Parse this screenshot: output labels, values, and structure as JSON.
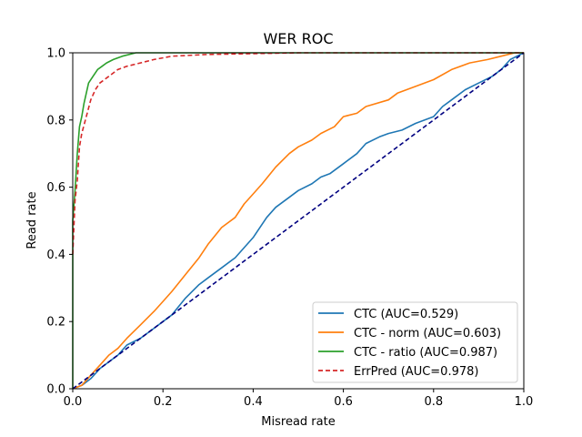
{
  "chart_data": {
    "type": "line",
    "title": "WER ROC",
    "xlabel": "Misread rate",
    "ylabel": "Read rate",
    "xlim": [
      0.0,
      1.0
    ],
    "ylim": [
      0.0,
      1.0
    ],
    "xticks": [
      "0.0",
      "0.2",
      "0.4",
      "0.6",
      "0.8",
      "1.0"
    ],
    "yticks": [
      "0.0",
      "0.2",
      "0.4",
      "0.6",
      "0.8",
      "1.0"
    ],
    "grid": false,
    "legend_position": "lower-right",
    "series": [
      {
        "name": "CTC (AUC=0.529)",
        "color": "#1f77b4",
        "style": "solid",
        "points": [
          [
            0,
            0
          ],
          [
            0.02,
            0.01
          ],
          [
            0.04,
            0.03
          ],
          [
            0.06,
            0.06
          ],
          [
            0.08,
            0.08
          ],
          [
            0.1,
            0.1
          ],
          [
            0.12,
            0.13
          ],
          [
            0.15,
            0.15
          ],
          [
            0.18,
            0.18
          ],
          [
            0.2,
            0.2
          ],
          [
            0.22,
            0.22
          ],
          [
            0.25,
            0.27
          ],
          [
            0.28,
            0.31
          ],
          [
            0.3,
            0.33
          ],
          [
            0.33,
            0.36
          ],
          [
            0.36,
            0.39
          ],
          [
            0.38,
            0.42
          ],
          [
            0.4,
            0.45
          ],
          [
            0.43,
            0.51
          ],
          [
            0.45,
            0.54
          ],
          [
            0.48,
            0.57
          ],
          [
            0.5,
            0.59
          ],
          [
            0.53,
            0.61
          ],
          [
            0.55,
            0.63
          ],
          [
            0.57,
            0.64
          ],
          [
            0.6,
            0.67
          ],
          [
            0.63,
            0.7
          ],
          [
            0.65,
            0.73
          ],
          [
            0.68,
            0.75
          ],
          [
            0.7,
            0.76
          ],
          [
            0.73,
            0.77
          ],
          [
            0.76,
            0.79
          ],
          [
            0.8,
            0.81
          ],
          [
            0.82,
            0.84
          ],
          [
            0.84,
            0.86
          ],
          [
            0.87,
            0.89
          ],
          [
            0.9,
            0.91
          ],
          [
            0.93,
            0.93
          ],
          [
            0.95,
            0.95
          ],
          [
            0.97,
            0.98
          ],
          [
            1,
            1
          ]
        ]
      },
      {
        "name": "CTC - norm (AUC=0.603)",
        "color": "#ff7f0e",
        "style": "solid",
        "points": [
          [
            0,
            0
          ],
          [
            0.02,
            0.01
          ],
          [
            0.04,
            0.04
          ],
          [
            0.06,
            0.07
          ],
          [
            0.08,
            0.1
          ],
          [
            0.1,
            0.12
          ],
          [
            0.12,
            0.15
          ],
          [
            0.15,
            0.19
          ],
          [
            0.18,
            0.23
          ],
          [
            0.2,
            0.26
          ],
          [
            0.22,
            0.29
          ],
          [
            0.25,
            0.34
          ],
          [
            0.28,
            0.39
          ],
          [
            0.3,
            0.43
          ],
          [
            0.33,
            0.48
          ],
          [
            0.36,
            0.51
          ],
          [
            0.38,
            0.55
          ],
          [
            0.4,
            0.58
          ],
          [
            0.42,
            0.61
          ],
          [
            0.45,
            0.66
          ],
          [
            0.48,
            0.7
          ],
          [
            0.5,
            0.72
          ],
          [
            0.53,
            0.74
          ],
          [
            0.55,
            0.76
          ],
          [
            0.58,
            0.78
          ],
          [
            0.6,
            0.81
          ],
          [
            0.63,
            0.82
          ],
          [
            0.65,
            0.84
          ],
          [
            0.7,
            0.86
          ],
          [
            0.72,
            0.88
          ],
          [
            0.76,
            0.9
          ],
          [
            0.8,
            0.92
          ],
          [
            0.84,
            0.95
          ],
          [
            0.88,
            0.97
          ],
          [
            0.92,
            0.98
          ],
          [
            0.95,
            0.99
          ],
          [
            0.98,
            1
          ],
          [
            1,
            1
          ]
        ]
      },
      {
        "name": "CTC - ratio (AUC=0.987)",
        "color": "#2ca02c",
        "style": "solid",
        "points": [
          [
            0,
            0
          ],
          [
            0,
            0.5
          ],
          [
            0.005,
            0.59
          ],
          [
            0.01,
            0.7
          ],
          [
            0.015,
            0.78
          ],
          [
            0.02,
            0.81
          ],
          [
            0.025,
            0.85
          ],
          [
            0.03,
            0.88
          ],
          [
            0.035,
            0.91
          ],
          [
            0.045,
            0.93
          ],
          [
            0.055,
            0.95
          ],
          [
            0.065,
            0.96
          ],
          [
            0.075,
            0.97
          ],
          [
            0.09,
            0.98
          ],
          [
            0.11,
            0.99
          ],
          [
            0.14,
            1
          ],
          [
            1,
            1
          ]
        ]
      },
      {
        "name": "ErrPred (AUC=0.978)",
        "color": "#d62728",
        "style": "dashed",
        "points": [
          [
            0,
            0.4
          ],
          [
            0.005,
            0.56
          ],
          [
            0.01,
            0.62
          ],
          [
            0.015,
            0.72
          ],
          [
            0.02,
            0.76
          ],
          [
            0.03,
            0.81
          ],
          [
            0.04,
            0.86
          ],
          [
            0.05,
            0.89
          ],
          [
            0.06,
            0.91
          ],
          [
            0.08,
            0.93
          ],
          [
            0.1,
            0.95
          ],
          [
            0.12,
            0.96
          ],
          [
            0.15,
            0.97
          ],
          [
            0.18,
            0.98
          ],
          [
            0.22,
            0.99
          ],
          [
            0.3,
            0.995
          ],
          [
            0.5,
            1
          ],
          [
            1,
            1
          ]
        ]
      },
      {
        "name": "chance",
        "color": "#000080",
        "style": "dashed",
        "points": [
          [
            0,
            0
          ],
          [
            1,
            1
          ]
        ]
      }
    ],
    "legend": [
      {
        "label": "CTC (AUC=0.529)",
        "color": "#1f77b4",
        "style": "solid"
      },
      {
        "label": "CTC - norm (AUC=0.603)",
        "color": "#ff7f0e",
        "style": "solid"
      },
      {
        "label": "CTC - ratio (AUC=0.987)",
        "color": "#2ca02c",
        "style": "solid"
      },
      {
        "label": "ErrPred (AUC=0.978)",
        "color": "#d62728",
        "style": "dashed"
      }
    ]
  }
}
